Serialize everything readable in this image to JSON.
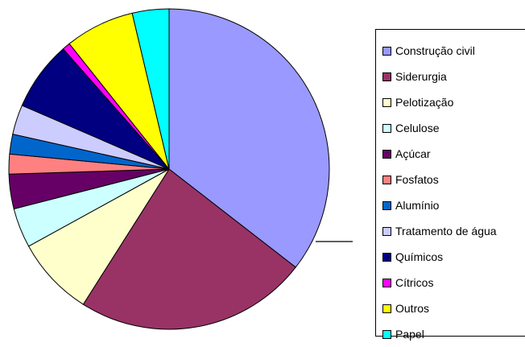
{
  "chart_data": {
    "type": "pie",
    "series": [
      {
        "label": "Construção civil",
        "value": 35.5,
        "color": "#9999FF"
      },
      {
        "label": "Siderurgia",
        "value": 23.5,
        "color": "#993366"
      },
      {
        "label": "Pelotização",
        "value": 8.0,
        "color": "#FFFFCC"
      },
      {
        "label": "Celulose",
        "value": 4.0,
        "color": "#CCFFFF"
      },
      {
        "label": "Açúcar",
        "value": 3.5,
        "color": "#660066"
      },
      {
        "label": "Fosfatos",
        "value": 2.0,
        "color": "#FF8080"
      },
      {
        "label": "Alumínio",
        "value": 2.0,
        "color": "#0066CC"
      },
      {
        "label": "Tratamento de água",
        "value": 3.0,
        "color": "#CCCCFF"
      },
      {
        "label": "Químicos",
        "value": 7.0,
        "color": "#000080"
      },
      {
        "label": "Cítricos",
        "value": 0.8,
        "color": "#FF00FF"
      },
      {
        "label": "Outros",
        "value": 7.0,
        "color": "#FFFF00"
      },
      {
        "label": "Papel",
        "value": 3.7,
        "color": "#00FFFF"
      }
    ],
    "legend_position": "right",
    "start": "top, clockwise"
  }
}
